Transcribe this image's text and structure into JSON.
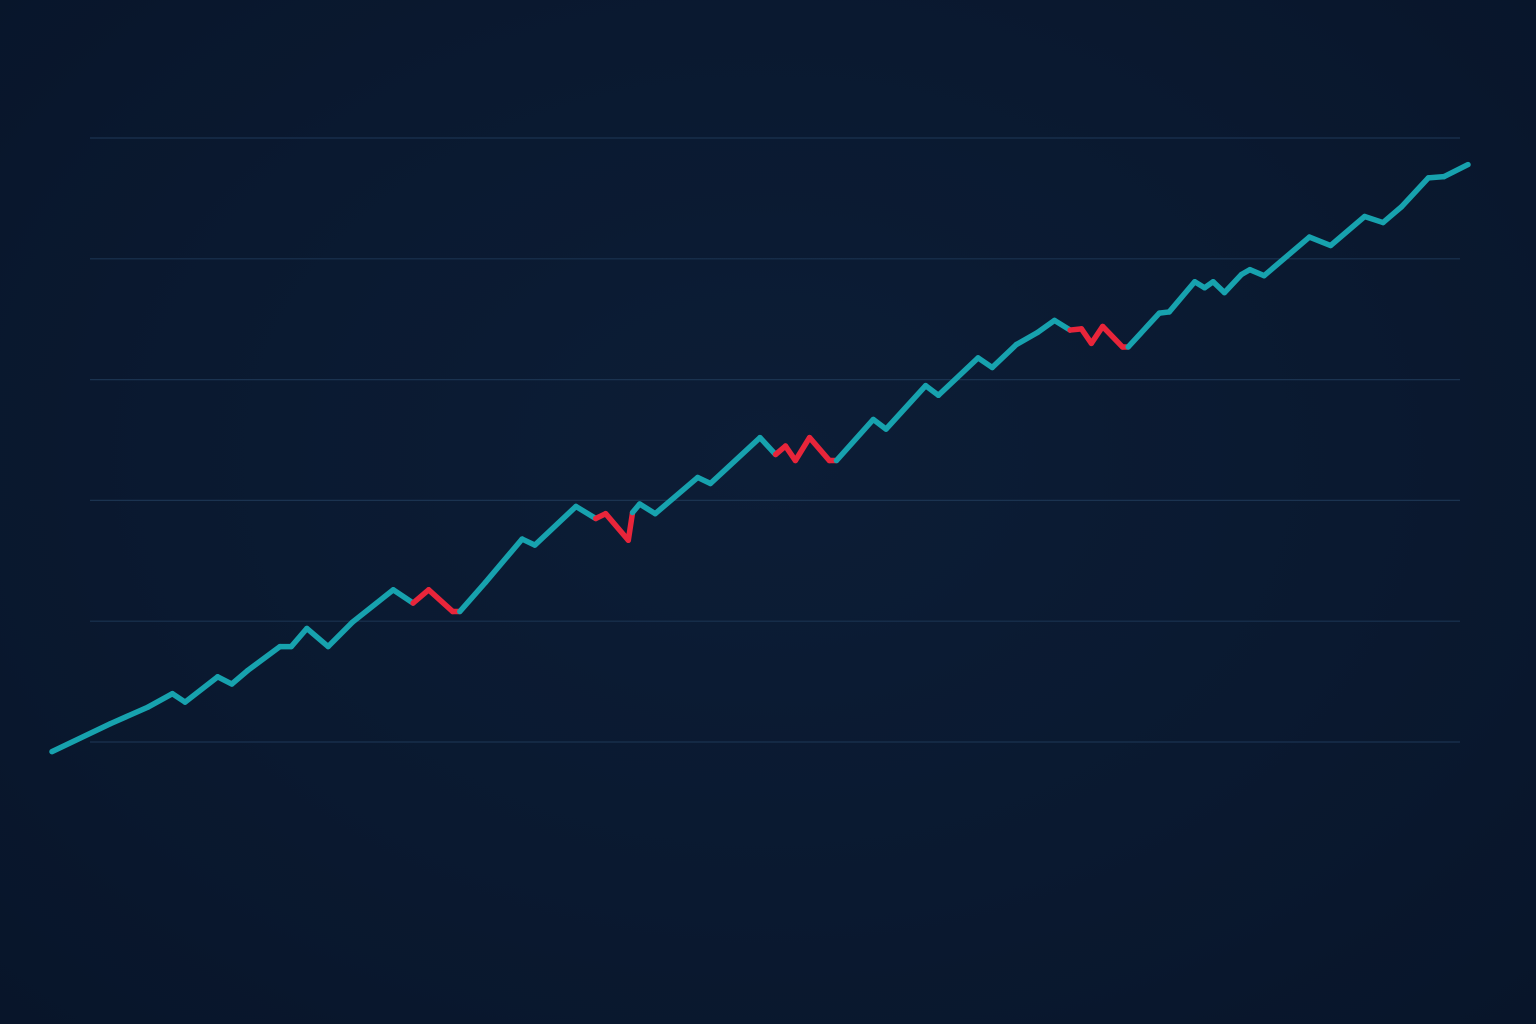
{
  "chart_data": {
    "type": "line",
    "title": "",
    "xlabel": "",
    "ylabel": "",
    "grid": true,
    "gridlines_y": [
      0,
      1,
      2,
      3,
      4,
      5
    ],
    "xlim": [
      0,
      100
    ],
    "ylim": [
      -0.1,
      5
    ],
    "colors": {
      "background": "#0a1930",
      "up": "#17a2ae",
      "down": "#e8253a",
      "grid": "#1b3350"
    },
    "x": [
      0,
      4.1,
      6.8,
      8.5,
      9.4,
      11.7,
      12.7,
      13.8,
      16.1,
      16.9,
      18.0,
      19.5,
      21.2,
      24.1,
      25.5,
      26.6,
      28.3,
      28.8,
      30.6,
      33.2,
      34.1,
      37.0,
      38.4,
      39.1,
      40.7,
      41.0,
      41.5,
      42.6,
      45.6,
      46.5,
      50.0,
      51.1,
      51.8,
      52.5,
      53.5,
      54.9,
      55.4,
      58.0,
      58.9,
      61.7,
      62.6,
      65.4,
      66.4,
      68.1,
      69.6,
      70.8,
      71.9,
      72.7,
      73.4,
      74.2,
      75.6,
      76.0,
      78.2,
      78.9,
      80.7,
      81.4,
      82.0,
      82.8,
      84.0,
      84.6,
      85.6,
      88.8,
      90.3,
      92.7,
      94.0,
      95.3,
      97.2,
      98.3,
      100
    ],
    "y": [
      -0.08,
      0.15,
      0.29,
      0.4,
      0.33,
      0.54,
      0.48,
      0.59,
      0.79,
      0.79,
      0.94,
      0.79,
      0.99,
      1.26,
      1.15,
      1.26,
      1.08,
      1.08,
      1.32,
      1.68,
      1.63,
      1.95,
      1.85,
      1.89,
      1.67,
      1.9,
      1.97,
      1.89,
      2.19,
      2.14,
      2.52,
      2.38,
      2.45,
      2.33,
      2.52,
      2.33,
      2.33,
      2.67,
      2.59,
      2.95,
      2.87,
      3.18,
      3.1,
      3.29,
      3.39,
      3.49,
      3.41,
      3.42,
      3.3,
      3.44,
      3.27,
      3.27,
      3.55,
      3.56,
      3.81,
      3.76,
      3.81,
      3.72,
      3.87,
      3.91,
      3.86,
      4.18,
      4.11,
      4.35,
      4.3,
      4.43,
      4.67,
      4.68,
      4.78
    ],
    "down_ranges": [
      [
        14,
        17
      ],
      [
        22,
        25
      ],
      [
        31,
        36
      ],
      [
        46,
        51
      ]
    ]
  }
}
